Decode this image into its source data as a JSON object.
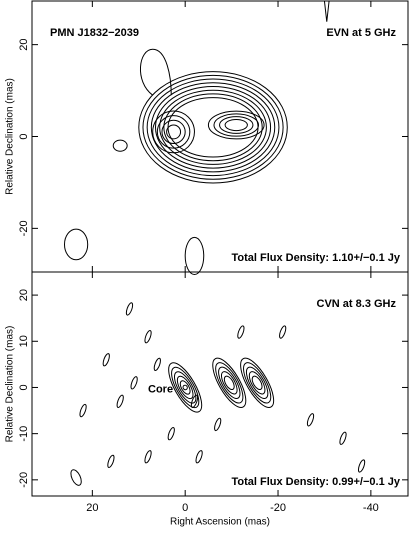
{
  "chart_data": [
    {
      "type": "contour",
      "title": "PMN J1832−2039",
      "subtitle": "EVN at 5 GHz",
      "annotations": [
        "Total Flux Density: 1.10+/−0.1 Jy"
      ],
      "y_label": "Relative Declination  (mas)",
      "xlim": [
        33,
        -48
      ],
      "ylim": [
        -29.5,
        29.5
      ],
      "xticks": [
        20,
        0,
        -20,
        -40
      ],
      "yticks": [
        20,
        0,
        -20
      ]
    },
    {
      "type": "contour",
      "subtitle": "CVN at 8.3 GHz",
      "annotations": [
        "Core",
        "Total Flux Density: 0.99+/−0.1 Jy"
      ],
      "x_label": "Right Ascension  (mas)",
      "y_label": "Relative Declination  (mas)",
      "xlim": [
        33,
        -48
      ],
      "ylim": [
        -23.5,
        25
      ],
      "xticks": [
        20,
        0,
        -20,
        -40
      ],
      "yticks": [
        20,
        10,
        0,
        -10,
        -20
      ]
    }
  ]
}
